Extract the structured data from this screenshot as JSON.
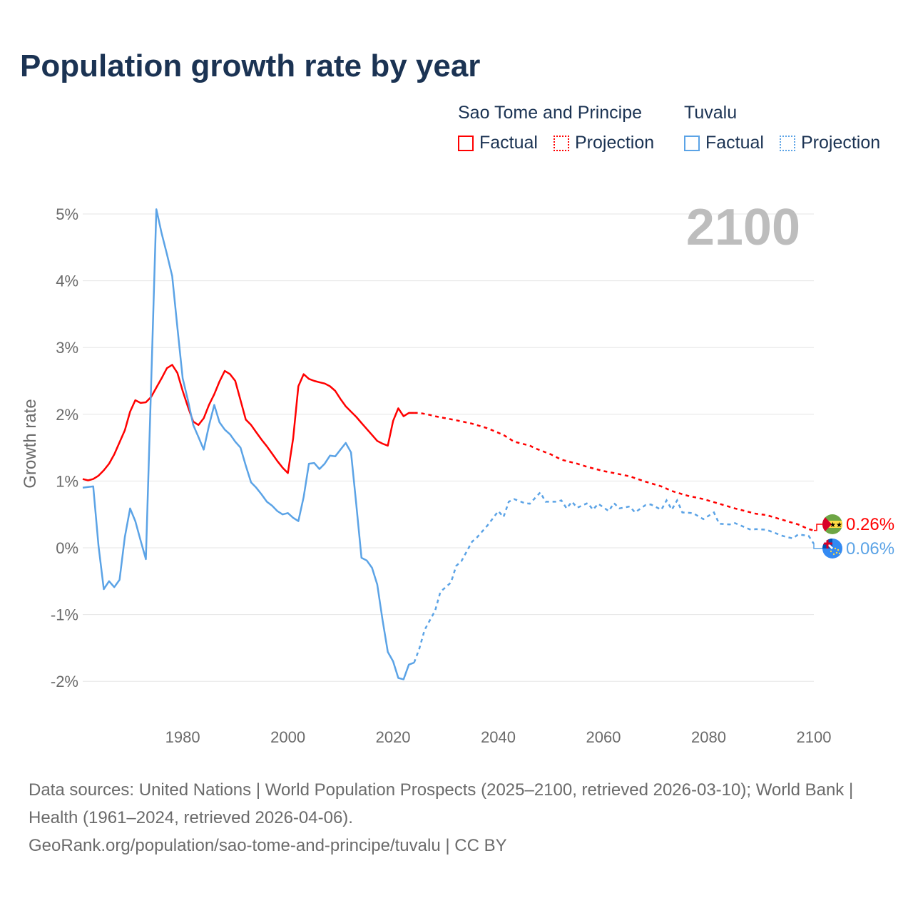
{
  "title": "Population growth rate by year",
  "legend": {
    "groups": [
      {
        "name": "Sao Tome and Principe",
        "factual": "Factual",
        "projection": "Projection",
        "color": "#ff0000"
      },
      {
        "name": "Tuvalu",
        "factual": "Factual",
        "projection": "Projection",
        "color": "#5ba3e6"
      }
    ]
  },
  "footer": {
    "sources": "Data sources: United Nations | World Population Prospects (2025–2100, retrieved 2026-03-10); World Bank | Health (1961–2024, retrieved 2026-04-06).",
    "link": "GeoRank.org/population/sao-tome-and-principe/tuvalu | CC BY"
  },
  "chart_data": {
    "type": "line",
    "title": "Population growth rate by year",
    "xlabel": "",
    "ylabel": "Growth rate",
    "year_label": "2100",
    "xlim": [
      1961,
      2100
    ],
    "ylim": [
      -2.5,
      5.3
    ],
    "x_ticks": [
      1980,
      2000,
      2020,
      2040,
      2060,
      2080,
      2100
    ],
    "x_tick_labels": [
      "1980",
      "2000",
      "2020",
      "2040",
      "2060",
      "2080",
      "2100"
    ],
    "y_ticks": [
      -2,
      -1,
      0,
      1,
      2,
      3,
      4,
      5
    ],
    "y_tick_labels": [
      "-2%",
      "-1%",
      "0%",
      "1%",
      "2%",
      "3%",
      "4%",
      "5%"
    ],
    "grid": true,
    "legend_position": "top-right",
    "series": [
      {
        "name": "Sao Tome and Principe",
        "color": "#ff0000",
        "end_label": "0.26%",
        "end_value": 0.26,
        "factual": {
          "x": [
            1961,
            1962,
            1963,
            1964,
            1965,
            1966,
            1967,
            1968,
            1969,
            1970,
            1971,
            1972,
            1973,
            1974,
            1975,
            1976,
            1977,
            1978,
            1979,
            1980,
            1981,
            1982,
            1983,
            1984,
            1985,
            1986,
            1987,
            1988,
            1989,
            1990,
            1991,
            1992,
            1993,
            1994,
            1995,
            1996,
            1997,
            1998,
            1999,
            2000,
            2001,
            2002,
            2003,
            2004,
            2005,
            2006,
            2007,
            2008,
            2009,
            2010,
            2011,
            2012,
            2013,
            2014,
            2015,
            2016,
            2017,
            2018,
            2019,
            2020,
            2021,
            2022,
            2023,
            2024
          ],
          "y": [
            1.03,
            1.01,
            1.03,
            1.08,
            1.16,
            1.26,
            1.4,
            1.58,
            1.76,
            2.04,
            2.21,
            2.17,
            2.18,
            2.26,
            2.4,
            2.54,
            2.69,
            2.74,
            2.62,
            2.35,
            2.11,
            1.89,
            1.84,
            1.94,
            2.14,
            2.3,
            2.49,
            2.65,
            2.6,
            2.5,
            2.21,
            1.92,
            1.84,
            1.73,
            1.62,
            1.52,
            1.41,
            1.3,
            1.2,
            1.12,
            1.64,
            2.42,
            2.6,
            2.53,
            2.5,
            2.48,
            2.46,
            2.42,
            2.35,
            2.23,
            2.12,
            2.04,
            1.96,
            1.87,
            1.78,
            1.69,
            1.6,
            1.56,
            1.53,
            1.9,
            2.09,
            1.97,
            2.02,
            2.02
          ]
        },
        "projection": {
          "x": [
            2024,
            2025,
            2027,
            2028,
            2032,
            2035,
            2038,
            2041,
            2043,
            2046,
            2047,
            2050,
            2052,
            2055,
            2057,
            2060,
            2062,
            2065,
            2068,
            2071,
            2073,
            2076,
            2079,
            2082,
            2085,
            2089,
            2091,
            2094,
            2097,
            2099,
            2100
          ],
          "y": [
            2.02,
            2.02,
            1.99,
            1.97,
            1.91,
            1.86,
            1.79,
            1.69,
            1.59,
            1.53,
            1.49,
            1.4,
            1.32,
            1.26,
            1.21,
            1.15,
            1.12,
            1.07,
            0.99,
            0.92,
            0.85,
            0.78,
            0.73,
            0.66,
            0.59,
            0.51,
            0.49,
            0.42,
            0.35,
            0.28,
            0.26
          ]
        }
      },
      {
        "name": "Tuvalu",
        "color": "#5ba3e6",
        "end_label": "0.06%",
        "end_value": 0.06,
        "factual": {
          "x": [
            1961,
            1962,
            1963,
            1964,
            1965,
            1966,
            1967,
            1968,
            1969,
            1970,
            1971,
            1972,
            1973,
            1974,
            1975,
            1976,
            1977,
            1978,
            1979,
            1980,
            1981,
            1982,
            1983,
            1984,
            1985,
            1986,
            1987,
            1988,
            1989,
            1990,
            1991,
            1992,
            1993,
            1994,
            1995,
            1996,
            1997,
            1998,
            1999,
            2000,
            2001,
            2002,
            2003,
            2004,
            2005,
            2006,
            2007,
            2008,
            2009,
            2010,
            2011,
            2012,
            2013,
            2014,
            2015,
            2016,
            2017,
            2018,
            2019,
            2020,
            2021,
            2022,
            2023,
            2024
          ],
          "y": [
            0.9,
            0.91,
            0.92,
            0.03,
            -0.62,
            -0.5,
            -0.59,
            -0.48,
            0.16,
            0.59,
            0.4,
            0.11,
            -0.17,
            2.45,
            5.07,
            4.71,
            4.4,
            4.07,
            3.3,
            2.54,
            2.21,
            1.84,
            1.66,
            1.47,
            1.83,
            2.14,
            1.88,
            1.77,
            1.7,
            1.59,
            1.5,
            1.23,
            0.98,
            0.9,
            0.8,
            0.69,
            0.63,
            0.55,
            0.5,
            0.52,
            0.45,
            0.4,
            0.76,
            1.26,
            1.27,
            1.18,
            1.26,
            1.38,
            1.37,
            1.47,
            1.57,
            1.43,
            0.65,
            -0.15,
            -0.19,
            -0.3,
            -0.55,
            -1.08,
            -1.56,
            -1.7,
            -1.95,
            -1.97,
            -1.75,
            -1.72
          ]
        },
        "projection": {
          "x": [
            2024,
            2025,
            2026,
            2028,
            2029,
            2031,
            2032,
            2033,
            2035,
            2036,
            2038,
            2040,
            2041,
            2042,
            2043,
            2045,
            2046,
            2048,
            2049,
            2051,
            2052,
            2053,
            2054,
            2055,
            2057,
            2058,
            2059,
            2061,
            2062,
            2063,
            2065,
            2066,
            2068,
            2069,
            2071,
            2072,
            2073,
            2074,
            2075,
            2077,
            2079,
            2081,
            2082,
            2084,
            2085,
            2088,
            2089,
            2091,
            2092,
            2094,
            2096,
            2097,
            2099,
            2100
          ],
          "y": [
            -1.72,
            -1.51,
            -1.23,
            -0.94,
            -0.66,
            -0.52,
            -0.27,
            -0.2,
            0.09,
            0.16,
            0.34,
            0.55,
            0.46,
            0.69,
            0.73,
            0.67,
            0.66,
            0.83,
            0.69,
            0.69,
            0.71,
            0.59,
            0.69,
            0.6,
            0.67,
            0.57,
            0.66,
            0.55,
            0.67,
            0.59,
            0.62,
            0.53,
            0.64,
            0.65,
            0.57,
            0.71,
            0.57,
            0.71,
            0.53,
            0.52,
            0.43,
            0.53,
            0.36,
            0.35,
            0.37,
            0.27,
            0.28,
            0.27,
            0.24,
            0.18,
            0.14,
            0.2,
            0.18,
            0.06
          ]
        }
      }
    ]
  }
}
